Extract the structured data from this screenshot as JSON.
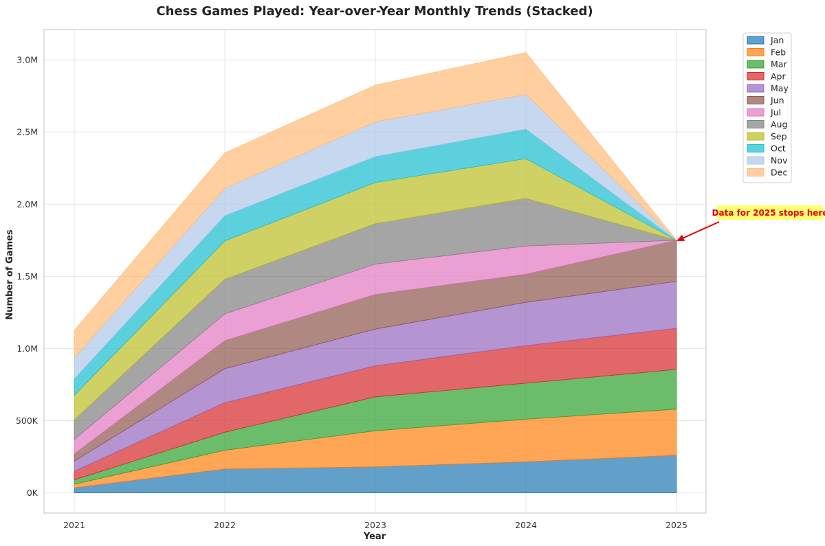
{
  "chart_data": {
    "type": "area",
    "stacked": true,
    "title": "Chess Games Played: Year-over-Year Monthly Trends (Stacked)",
    "xlabel": "Year",
    "ylabel": "Number of Games",
    "x": [
      "2021",
      "2022",
      "2023",
      "2024",
      "2025"
    ],
    "ylim": [
      -140000,
      3210000
    ],
    "yticks": [
      0,
      500000,
      1000000,
      1500000,
      2000000,
      2500000,
      3000000
    ],
    "ytick_labels": [
      "0K",
      "500K",
      "1.0M",
      "1.5M",
      "2.0M",
      "2.5M",
      "3.0M"
    ],
    "grid": true,
    "legend_position": "top-right outside",
    "series": [
      {
        "name": "Jan",
        "color": "#1f77b4",
        "values": [
          35000,
          165000,
          180000,
          215000,
          260000
        ]
      },
      {
        "name": "Feb",
        "color": "#ff7f0e",
        "values": [
          25000,
          130000,
          250000,
          295000,
          320000
        ]
      },
      {
        "name": "Mar",
        "color": "#2ca02c",
        "values": [
          30000,
          125000,
          235000,
          250000,
          275000
        ]
      },
      {
        "name": "Apr",
        "color": "#d62728",
        "values": [
          60000,
          205000,
          215000,
          260000,
          285000
        ]
      },
      {
        "name": "May",
        "color": "#9467bd",
        "values": [
          70000,
          235000,
          255000,
          300000,
          325000
        ]
      },
      {
        "name": "Jun",
        "color": "#8c564b",
        "values": [
          50000,
          195000,
          240000,
          195000,
          285000
        ]
      },
      {
        "name": "Jul",
        "color": "#e377c2",
        "values": [
          100000,
          185000,
          210000,
          195000,
          0
        ]
      },
      {
        "name": "Aug",
        "color": "#7f7f7f",
        "values": [
          135000,
          240000,
          280000,
          330000,
          0
        ]
      },
      {
        "name": "Sep",
        "color": "#bcbd22",
        "values": [
          170000,
          265000,
          285000,
          275000,
          0
        ]
      },
      {
        "name": "Oct",
        "color": "#17becf",
        "values": [
          115000,
          175000,
          180000,
          205000,
          0
        ]
      },
      {
        "name": "Nov",
        "color": "#aec7e8",
        "values": [
          145000,
          190000,
          240000,
          240000,
          0
        ]
      },
      {
        "name": "Dec",
        "color": "#ffbb78",
        "values": [
          190000,
          245000,
          255000,
          290000,
          0
        ]
      }
    ],
    "annotation": {
      "text": "Data for 2025 stops here",
      "target_x": "2025",
      "target_y": 1745000
    }
  }
}
